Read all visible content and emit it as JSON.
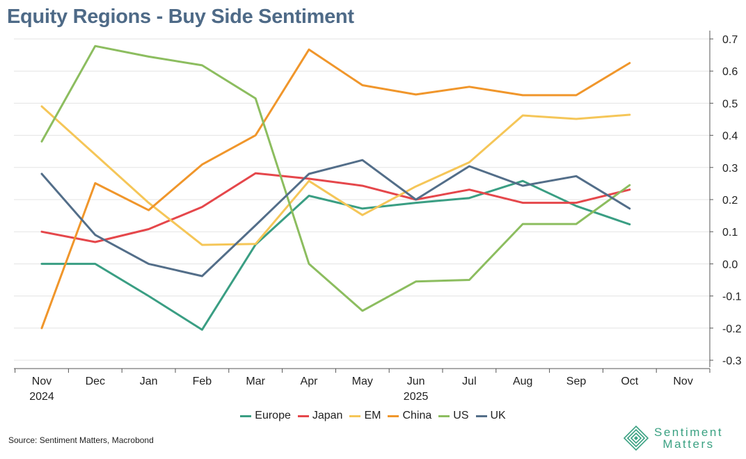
{
  "title": "Equity Regions - Buy Side Sentiment",
  "source": "Source: Sentiment Matters, Macrobond",
  "logo": {
    "line1": "Sentiment",
    "line2": "Matters",
    "icon": "diamond-logo-icon"
  },
  "colors": {
    "title": "#4e6a87",
    "Europe": "#3a9e83",
    "Japan": "#e5474b",
    "EM": "#f5c658",
    "China": "#f0962b",
    "US": "#8cbd5f",
    "UK": "#536e89"
  },
  "chart_data": {
    "type": "line",
    "title": "Equity Regions - Buy Side Sentiment",
    "xlabel": "",
    "ylabel": "",
    "ylim": [
      -0.3,
      0.7
    ],
    "yticks": [
      0.7,
      0.6,
      0.5,
      0.4,
      0.3,
      0.2,
      0.1,
      0.0,
      -0.1,
      -0.2,
      -0.3
    ],
    "ytick_labels": [
      "0.7",
      "0.6",
      "0.5",
      "0.4",
      "0.3",
      "0.2",
      "0.1",
      "0.0",
      "-0.1",
      "-0.2",
      "-0.3"
    ],
    "y_axis_side": "right",
    "grid": true,
    "categories": [
      "Nov",
      "Dec",
      "Jan",
      "Feb",
      "Mar",
      "Apr",
      "May",
      "Jun",
      "Jul",
      "Aug",
      "Sep",
      "Oct",
      "Nov"
    ],
    "year_labels": [
      {
        "index": 0,
        "label": "2024"
      },
      {
        "index": 7,
        "label": "2025"
      }
    ],
    "legend_position": "bottom-center",
    "series": [
      {
        "name": "Europe",
        "values": [
          0.0,
          0.0,
          -0.1,
          -0.205,
          0.06,
          0.212,
          0.172,
          0.19,
          0.205,
          0.258,
          0.18,
          0.123,
          null
        ]
      },
      {
        "name": "Japan",
        "values": [
          0.1,
          0.068,
          0.108,
          0.177,
          0.282,
          0.265,
          0.243,
          0.2,
          0.231,
          0.19,
          0.19,
          0.231,
          null
        ]
      },
      {
        "name": "EM",
        "values": [
          0.49,
          0.34,
          0.19,
          0.059,
          0.062,
          0.258,
          0.152,
          0.241,
          0.316,
          0.462,
          0.451,
          0.464,
          null
        ]
      },
      {
        "name": "China",
        "values": [
          -0.2,
          0.251,
          0.167,
          0.309,
          0.4,
          0.667,
          0.556,
          0.527,
          0.551,
          0.525,
          0.525,
          0.625,
          null
        ]
      },
      {
        "name": "US",
        "values": [
          0.381,
          0.678,
          0.645,
          0.618,
          0.515,
          0.0,
          -0.146,
          -0.055,
          -0.05,
          0.124,
          0.124,
          0.245,
          null
        ]
      },
      {
        "name": "UK",
        "values": [
          0.28,
          0.09,
          0.0,
          -0.038,
          0.12,
          0.28,
          0.323,
          0.2,
          0.304,
          0.243,
          0.273,
          0.172,
          null
        ]
      }
    ]
  }
}
